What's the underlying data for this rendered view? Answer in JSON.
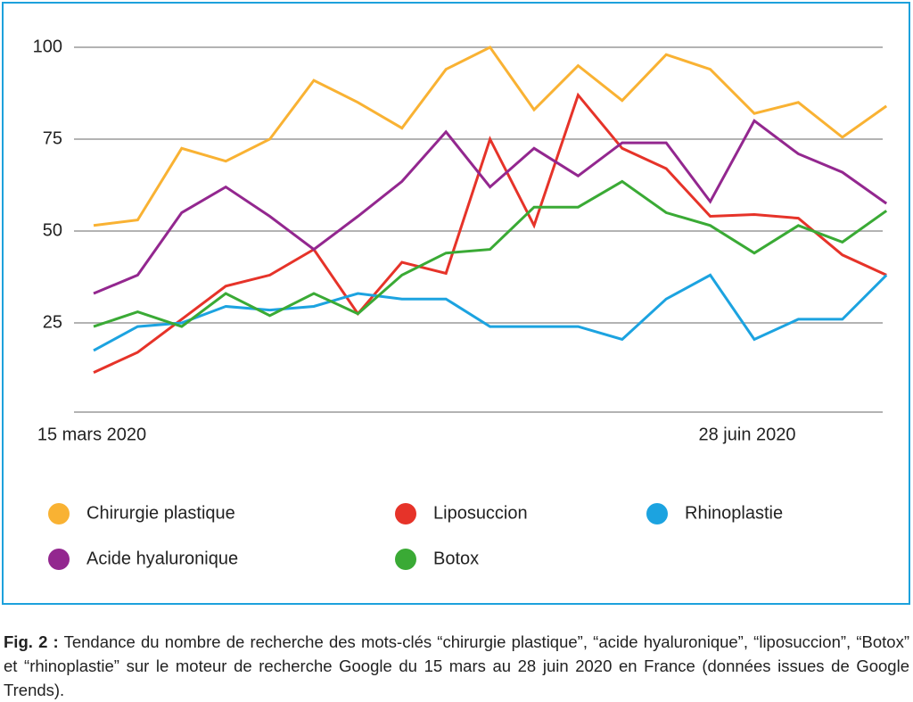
{
  "chart_data": {
    "type": "line",
    "categories": [
      "15 mars 2020",
      null,
      null,
      null,
      null,
      null,
      null,
      null,
      null,
      null,
      null,
      null,
      null,
      null,
      null,
      "28 juin 2020",
      null,
      null,
      null
    ],
    "series": [
      {
        "name": "Chirurgie plastique",
        "color": "#f9b233",
        "values": [
          51.5,
          53,
          72.5,
          69,
          75,
          91,
          85,
          78,
          94,
          100,
          83,
          95,
          85.5,
          98,
          94,
          82,
          85,
          75.5,
          84
        ]
      },
      {
        "name": "Liposuccion",
        "color": "#e63329",
        "values": [
          11.5,
          17,
          26,
          35,
          38,
          45,
          27.5,
          41.5,
          38.5,
          75,
          51.5,
          87,
          72.5,
          67,
          54,
          54.5,
          53.5,
          43.5,
          38
        ]
      },
      {
        "name": "Rhinoplastie",
        "color": "#1ca3e0",
        "values": [
          17.5,
          24,
          25,
          29.5,
          28.5,
          29.5,
          33,
          31.5,
          31.5,
          24,
          24,
          24,
          20.5,
          31.5,
          38,
          20.5,
          26,
          26,
          38
        ]
      },
      {
        "name": "Acide hyaluronique",
        "color": "#93278f",
        "values": [
          33,
          38,
          55,
          62,
          54,
          45,
          54,
          63.5,
          77,
          62,
          72.5,
          65,
          74,
          74,
          58,
          80,
          71,
          66,
          57.5
        ]
      },
      {
        "name": "Botox",
        "color": "#3aaa35",
        "values": [
          24,
          28,
          24,
          33,
          27,
          33,
          27.5,
          38,
          44,
          45,
          56.5,
          56.5,
          63.5,
          55,
          51.5,
          44,
          51.5,
          47,
          55.5
        ]
      }
    ],
    "ylim": [
      0,
      100
    ],
    "yticks": [
      25,
      50,
      75,
      100
    ],
    "grid": true,
    "figure_label": "Fig. 2 :",
    "caption": "Tendance du nombre de recherche des mots-clés “chirurgie plastique”, “acide hyaluronique”, “lipo­succion”, “Botox” et “rhinoplastie” sur le moteur de recherche Google du 15 mars au 28 juin 2020 en France (données issues de Google Trends)."
  }
}
